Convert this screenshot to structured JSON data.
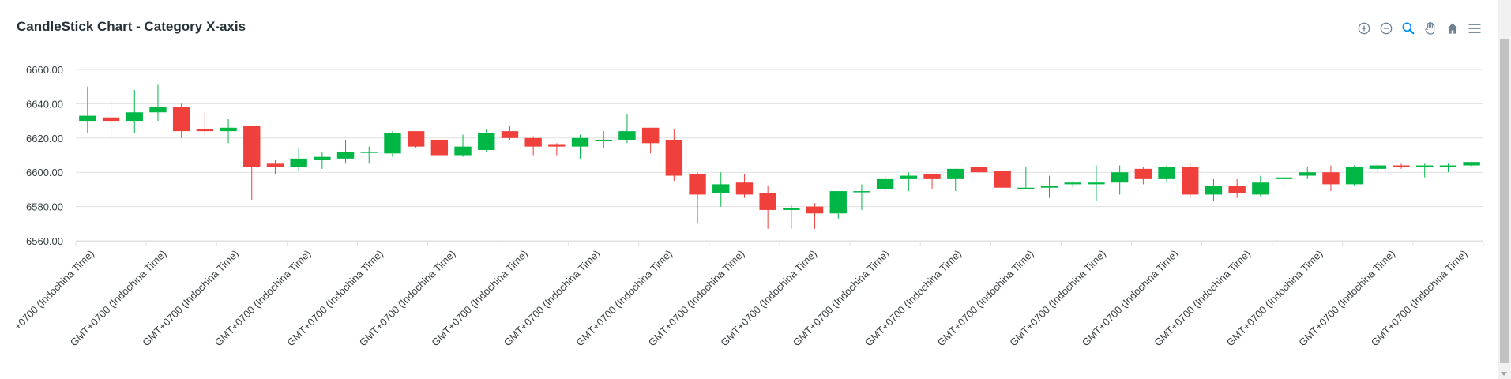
{
  "chart_data": {
    "type": "candlestick",
    "title": "CandleStick Chart - Category X-axis",
    "xlabel": "",
    "ylabel": "",
    "ylim": [
      6560,
      6660
    ],
    "y_ticks": [
      "6660.00",
      "6640.00",
      "6620.00",
      "6600.00",
      "6580.00",
      "6560.00"
    ],
    "y_tick_values": [
      6660,
      6640,
      6620,
      6600,
      6580,
      6560
    ],
    "up_color": "#00B746",
    "down_color": "#EF403C",
    "grid": true,
    "x_tick_labels": [
      "+0700 (Indochina Time)",
      "GMT+0700 (Indochina Time)",
      "GMT+0700 (Indochina Time)",
      "GMT+0700 (Indochina Time)",
      "GMT+0700 (Indochina Time)",
      "GMT+0700 (Indochina Time)",
      "GMT+0700 (Indochina Time)",
      "GMT+0700 (Indochina Time)",
      "GMT+0700 (Indochina Time)",
      "GMT+0700 (Indochina Time)",
      "GMT+0700 (Indochina Time)",
      "GMT+0700 (Indochina Time)",
      "GMT+0700 (Indochina Time)",
      "GMT+0700 (Indochina Time)",
      "GMT+0700 (Indochina Time)",
      "GMT+0700 (Indochina Time)",
      "GMT+0700 (Indochina Time)",
      "GMT+0700 (Indochina Time)",
      "GMT+0700 (Indochina Time)",
      "GMT+0700 (Indochina Time)"
    ],
    "candles": [
      [
        6630,
        6650,
        6623,
        6633
      ],
      [
        6632,
        6643,
        6620,
        6630
      ],
      [
        6630,
        6648,
        6623,
        6635
      ],
      [
        6635,
        6651,
        6630,
        6638
      ],
      [
        6638,
        6640,
        6620,
        6624
      ],
      [
        6625,
        6635,
        6622,
        6624
      ],
      [
        6624,
        6631,
        6617,
        6626
      ],
      [
        6627,
        6627,
        6584,
        6603
      ],
      [
        6605,
        6607,
        6599,
        6603
      ],
      [
        6603,
        6614,
        6601,
        6608
      ],
      [
        6607,
        6612,
        6602,
        6609
      ],
      [
        6608,
        6619,
        6605,
        6612
      ],
      [
        6612,
        6615,
        6605,
        6612
      ],
      [
        6611,
        6624,
        6609,
        6623
      ],
      [
        6624,
        6624,
        6614,
        6615
      ],
      [
        6619,
        6619,
        6610,
        6610
      ],
      [
        6610,
        6622,
        6609,
        6615
      ],
      [
        6613,
        6625,
        6612,
        6623
      ],
      [
        6624,
        6627,
        6619,
        6620
      ],
      [
        6620,
        6621,
        6610,
        6615
      ],
      [
        6616,
        6617,
        6610,
        6615
      ],
      [
        6615,
        6622,
        6608,
        6620
      ],
      [
        6619,
        6624,
        6614,
        6619
      ],
      [
        6619,
        6634,
        6617,
        6624
      ],
      [
        6626,
        6626,
        6611,
        6617
      ],
      [
        6619,
        6625,
        6595,
        6598
      ],
      [
        6599,
        6600,
        6570,
        6587
      ],
      [
        6588,
        6600,
        6580,
        6593
      ],
      [
        6594,
        6599,
        6585,
        6587
      ],
      [
        6588,
        6592,
        6567,
        6578
      ],
      [
        6578,
        6581,
        6567,
        6579
      ],
      [
        6580,
        6582,
        6567,
        6576
      ],
      [
        6576,
        6589,
        6573,
        6589
      ],
      [
        6589,
        6593,
        6578,
        6589
      ],
      [
        6590,
        6598,
        6589,
        6596
      ],
      [
        6596,
        6600,
        6589,
        6598
      ],
      [
        6599,
        6599,
        6590,
        6596
      ],
      [
        6596,
        6602,
        6589,
        6602
      ],
      [
        6603,
        6606,
        6598,
        6600
      ],
      [
        6601,
        6601,
        6591,
        6591
      ],
      [
        6591,
        6603,
        6591,
        6591
      ],
      [
        6591,
        6598,
        6585,
        6592
      ],
      [
        6593,
        6595,
        6591,
        6594
      ],
      [
        6593,
        6604,
        6583,
        6594
      ],
      [
        6594,
        6604,
        6587,
        6600
      ],
      [
        6602,
        6603,
        6593,
        6596
      ],
      [
        6596,
        6604,
        6594,
        6603
      ],
      [
        6603,
        6605,
        6585,
        6587
      ],
      [
        6587,
        6596,
        6583,
        6592
      ],
      [
        6592,
        6596,
        6585,
        6588
      ],
      [
        6587,
        6598,
        6586,
        6594
      ],
      [
        6596,
        6601,
        6590,
        6597
      ],
      [
        6598,
        6603,
        6596,
        6600
      ],
      [
        6600,
        6604,
        6589,
        6593
      ],
      [
        6593,
        6604,
        6592,
        6603
      ],
      [
        6602,
        6605,
        6600,
        6604
      ],
      [
        6604,
        6605,
        6602,
        6603
      ],
      [
        6603,
        6605,
        6597,
        6604
      ],
      [
        6603,
        6605,
        6600,
        6604
      ],
      [
        6604,
        6606,
        6603,
        6606
      ]
    ]
  },
  "toolbar": {
    "icons": [
      "zoom-in-icon",
      "zoom-out-icon",
      "zoom-selection-icon",
      "pan-icon",
      "reset-home-icon",
      "menu-icon"
    ],
    "accent_color": "#008FFB",
    "icon_color": "#6E8192"
  }
}
